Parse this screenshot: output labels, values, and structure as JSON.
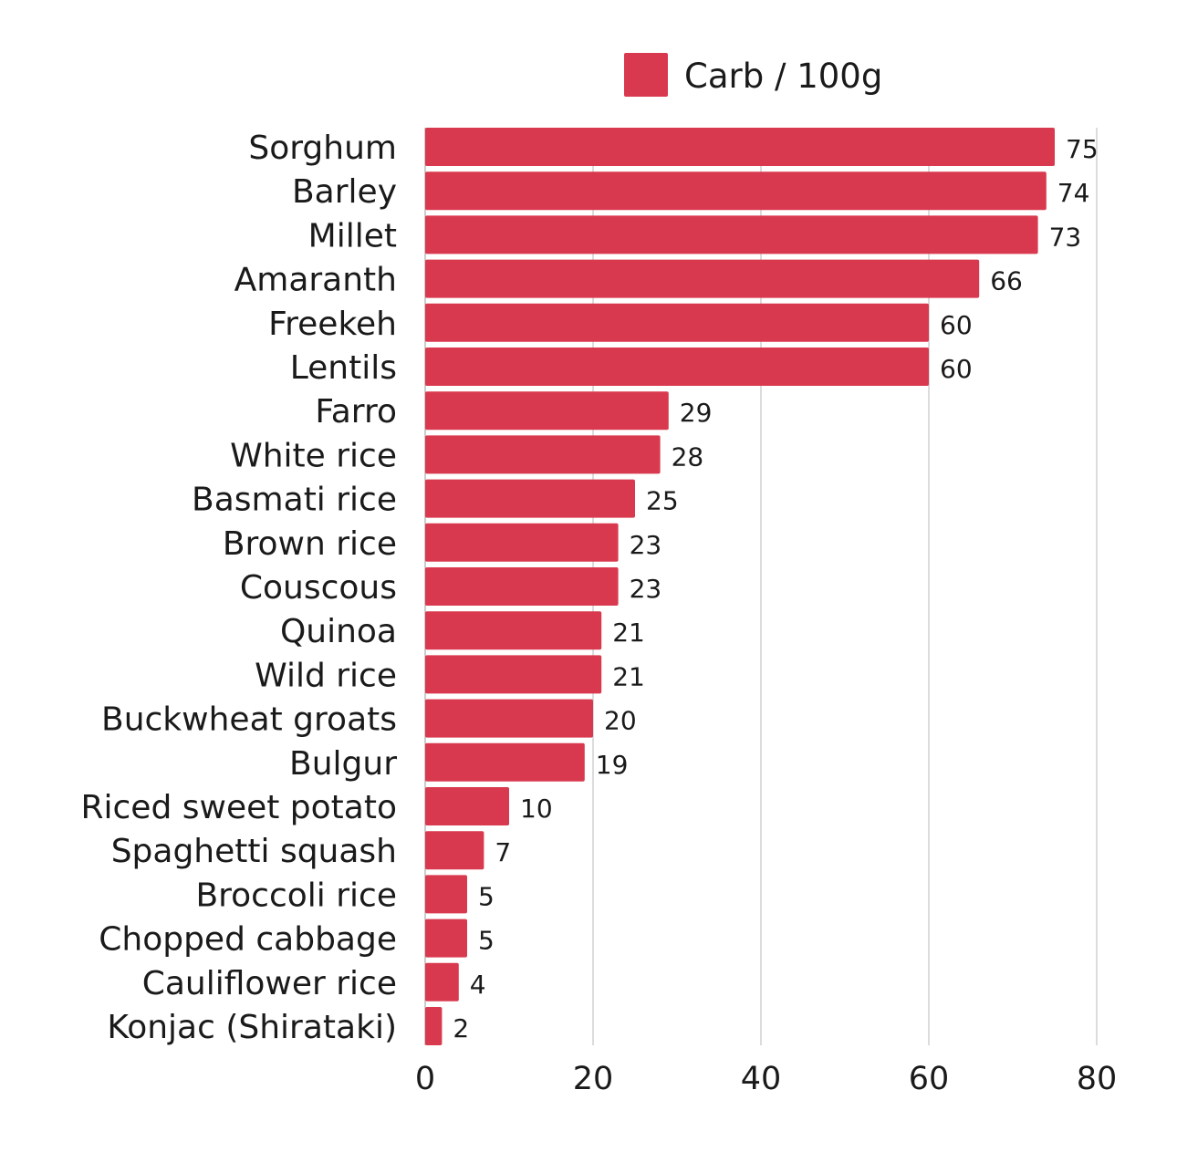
{
  "chart_data": {
    "type": "bar",
    "orientation": "horizontal",
    "categories": [
      "Sorghum",
      "Barley",
      "Millet",
      "Amaranth",
      "Freekeh",
      "Lentils",
      "Farro",
      "White rice",
      "Basmati rice",
      "Brown rice",
      "Couscous",
      "Quinoa",
      "Wild rice",
      "Buckwheat groats",
      "Bulgur",
      "Riced sweet potato",
      "Spaghetti squash",
      "Broccoli rice",
      "Chopped cabbage",
      "Cauliflower rice",
      "Konjac (Shirataki)"
    ],
    "series": [
      {
        "name": "Carb / 100g",
        "color": "#d9394e",
        "values": [
          75,
          74,
          73,
          66,
          60,
          60,
          29,
          28,
          25,
          23,
          23,
          21,
          21,
          20,
          19,
          10,
          7,
          5,
          5,
          4,
          2
        ]
      }
    ],
    "xlim": [
      0,
      80
    ],
    "xticks": [
      0,
      20,
      40,
      60,
      80
    ],
    "grid": true,
    "legend_placement": "top",
    "data_labels": true
  }
}
